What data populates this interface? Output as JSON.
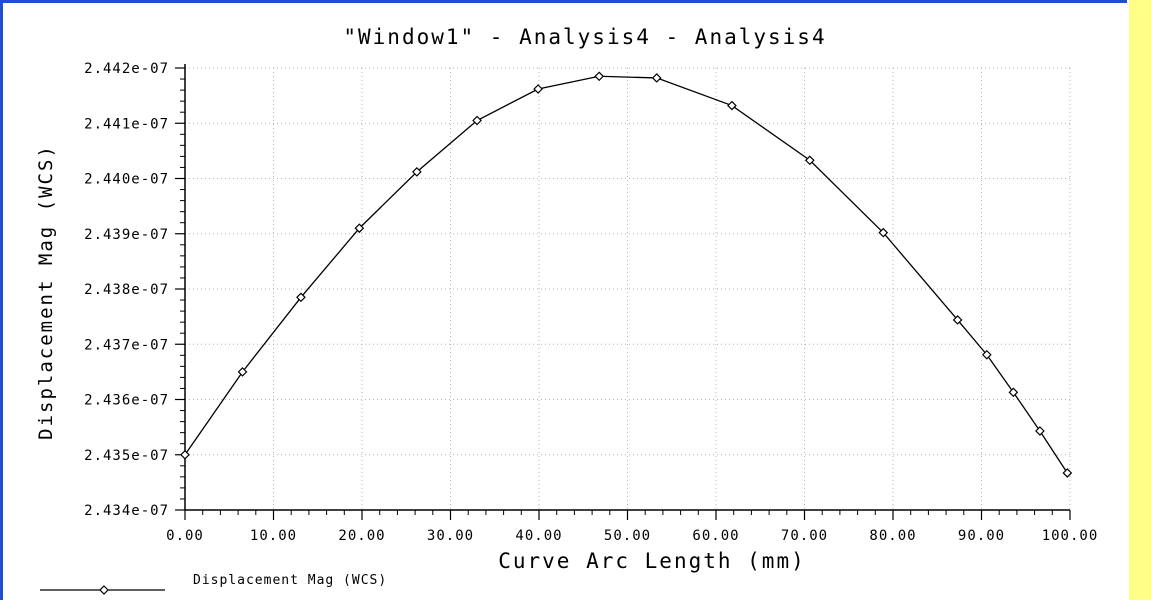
{
  "chart_data": {
    "type": "line",
    "title": "\"Window1\" - Analysis4 - Analysis4",
    "xlabel": "Curve Arc Length (mm)",
    "ylabel": "Displacement Mag (WCS)",
    "xlim": [
      0,
      100
    ],
    "ylim": [
      2.434e-07,
      2.442e-07
    ],
    "x_ticks": [
      "0.00",
      "10.00",
      "20.00",
      "30.00",
      "40.00",
      "50.00",
      "60.00",
      "70.00",
      "80.00",
      "90.00",
      "100.00"
    ],
    "y_ticks": [
      "2.434e-07",
      "2.435e-07",
      "2.436e-07",
      "2.437e-07",
      "2.438e-07",
      "2.439e-07",
      "2.440e-07",
      "2.441e-07",
      "2.442e-07"
    ],
    "grid": true,
    "legend_position": "bottom-left",
    "series": [
      {
        "name": "Displacement Mag (WCS)",
        "marker": "diamond",
        "color": "#000000",
        "x": [
          0.0,
          6.5,
          13.1,
          19.7,
          26.2,
          33.0,
          39.9,
          46.8,
          53.3,
          61.8,
          70.6,
          78.9,
          87.3,
          90.6,
          93.6,
          96.6,
          99.7
        ],
        "y": [
          2.435e-07,
          2.4365e-07,
          2.43785e-07,
          2.4391e-07,
          2.44012e-07,
          2.44105e-07,
          2.44162e-07,
          2.44185e-07,
          2.44182e-07,
          2.44132e-07,
          2.44033e-07,
          2.43902e-07,
          2.43744e-07,
          2.43681e-07,
          2.43613e-07,
          2.43543e-07,
          2.43467e-07
        ]
      }
    ]
  }
}
